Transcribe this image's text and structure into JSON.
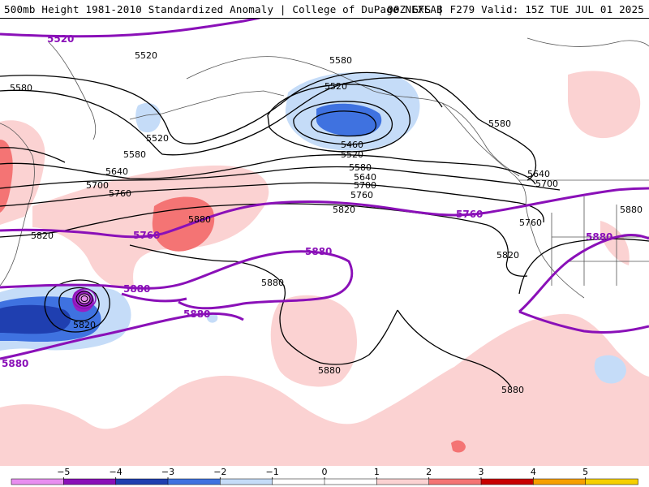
{
  "header": {
    "title_left": "500mb Height 1981-2010 Standardized Anomaly | College of DuPage NEXLAB",
    "title_right": "00Z GFS | F279 Valid: 15Z TUE JUL 01 2025"
  },
  "colors": {
    "contour": "#000000",
    "highlight_contour": "#8a10b8",
    "anom_pos_1": "#fbd2d2",
    "anom_pos_2": "#f47474",
    "anom_neg_1": "#c5dcf8",
    "anom_neg_2": "#3f72e0",
    "anom_neg_4": "#9a1ec4",
    "coastline": "#555555"
  },
  "contour_labels": [
    {
      "id": "lbl-5520-a",
      "text": "5520",
      "style": "black"
    },
    {
      "id": "lbl-5520-b",
      "text": "5520",
      "style": "black"
    },
    {
      "id": "lbl-5520-c",
      "text": "5520",
      "style": "black"
    },
    {
      "id": "lbl-5520-d",
      "text": "5520",
      "style": "black"
    },
    {
      "id": "lbl-5580-a",
      "text": "5580",
      "style": "black"
    },
    {
      "id": "lbl-5580-b",
      "text": "5580",
      "style": "black"
    },
    {
      "id": "lbl-5580-c",
      "text": "5580",
      "style": "black"
    },
    {
      "id": "lbl-5580-d",
      "text": "5580",
      "style": "black"
    },
    {
      "id": "lbl-5580-e",
      "text": "5580",
      "style": "black"
    },
    {
      "id": "lbl-5640-a",
      "text": "5640",
      "style": "black"
    },
    {
      "id": "lbl-5640-b",
      "text": "5640",
      "style": "black"
    },
    {
      "id": "lbl-5640-c",
      "text": "5640",
      "style": "black"
    },
    {
      "id": "lbl-5700-a",
      "text": "5700",
      "style": "black"
    },
    {
      "id": "lbl-5700-b",
      "text": "5700",
      "style": "black"
    },
    {
      "id": "lbl-5700-c",
      "text": "5700",
      "style": "black"
    },
    {
      "id": "lbl-5760-a",
      "text": "5760",
      "style": "black"
    },
    {
      "id": "lbl-5760-b",
      "text": "5760",
      "style": "black"
    },
    {
      "id": "lbl-5760-c",
      "text": "5760",
      "style": "black"
    },
    {
      "id": "lbl-5820-a",
      "text": "5820",
      "style": "black"
    },
    {
      "id": "lbl-5820-b",
      "text": "5820",
      "style": "black"
    },
    {
      "id": "lbl-5820-c",
      "text": "5820",
      "style": "black"
    },
    {
      "id": "lbl-5820-d",
      "text": "5820",
      "style": "black"
    },
    {
      "id": "lbl-5880-a",
      "text": "5880",
      "style": "black"
    },
    {
      "id": "lbl-5880-b",
      "text": "5880",
      "style": "black"
    },
    {
      "id": "lbl-5880-c",
      "text": "5880",
      "style": "black"
    },
    {
      "id": "lbl-5880-d",
      "text": "5880",
      "style": "black"
    },
    {
      "id": "lbl-5880-e",
      "text": "5880",
      "style": "black"
    },
    {
      "id": "lbl-5460",
      "text": "5460",
      "style": "black"
    },
    {
      "id": "plbl-5520",
      "text": "5520",
      "style": "purple"
    },
    {
      "id": "plbl-5760-a",
      "text": "5760",
      "style": "purple"
    },
    {
      "id": "plbl-5760-b",
      "text": "5760",
      "style": "purple"
    },
    {
      "id": "plbl-5880-a",
      "text": "5880",
      "style": "purple"
    },
    {
      "id": "plbl-5880-b",
      "text": "5880",
      "style": "purple"
    },
    {
      "id": "plbl-5880-c",
      "text": "5880",
      "style": "purple"
    },
    {
      "id": "plbl-5880-d",
      "text": "5880",
      "style": "purple"
    },
    {
      "id": "plbl-5880-e",
      "text": "5880",
      "style": "purple"
    }
  ],
  "legend": {
    "ticks": [
      "−5",
      "−4",
      "−3",
      "−2",
      "−1",
      "0",
      "1",
      "2",
      "3",
      "4",
      "5"
    ],
    "colors": [
      "#e88ef0",
      "#8a10b8",
      "#1f3fb0",
      "#3f72e0",
      "#c5dcf8",
      "#ffffff",
      "#ffffff",
      "#fbd2d2",
      "#f47474",
      "#c80000",
      "#f6a000",
      "#f6d000"
    ]
  }
}
